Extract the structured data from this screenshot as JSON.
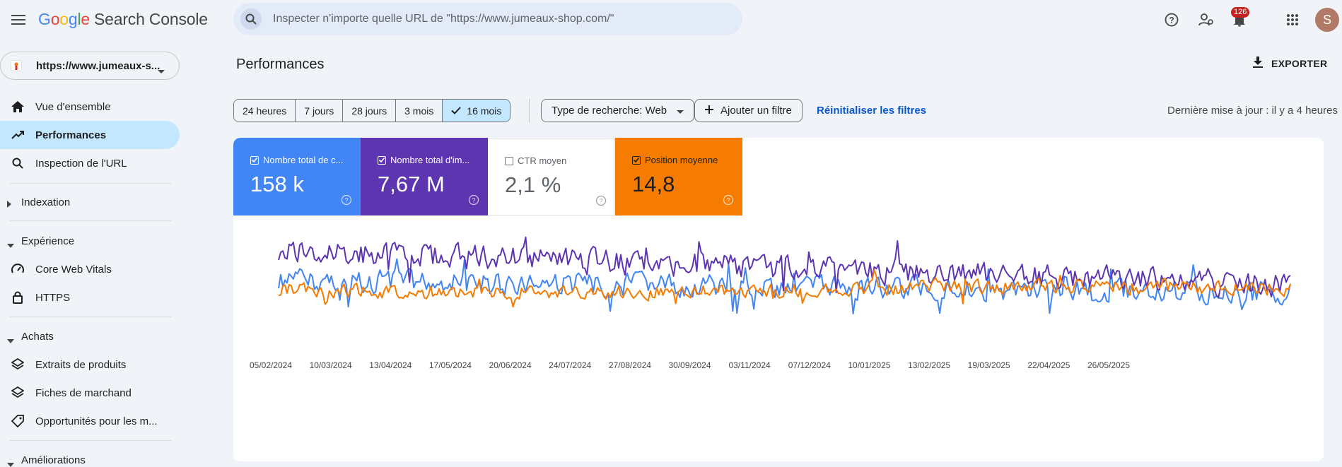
{
  "app": {
    "logo_google": "Google",
    "logo_product": "Search Console"
  },
  "search": {
    "placeholder": "Inspecter n'importe quelle URL de \"https://www.jumeaux-shop.com/\""
  },
  "topbar": {
    "notifications_count": "126",
    "avatar_letter": "S"
  },
  "property": {
    "label": "https://www.jumeaux-s..."
  },
  "sidebar": {
    "items": [
      {
        "label": "Vue d'ensemble",
        "icon": "home-icon"
      },
      {
        "label": "Performances",
        "icon": "trending-up-icon",
        "active": true
      },
      {
        "label": "Inspection de l'URL",
        "icon": "search-icon"
      }
    ],
    "sections": [
      {
        "label": "Indexation",
        "expanded": false,
        "items": []
      },
      {
        "label": "Expérience",
        "expanded": true,
        "items": [
          {
            "label": "Core Web Vitals",
            "icon": "speed-icon"
          },
          {
            "label": "HTTPS",
            "icon": "lock-icon"
          }
        ]
      },
      {
        "label": "Achats",
        "expanded": true,
        "items": [
          {
            "label": "Extraits de produits",
            "icon": "layers-icon"
          },
          {
            "label": "Fiches de marchand",
            "icon": "layers-icon"
          },
          {
            "label": "Opportunités pour les m...",
            "icon": "tag-icon"
          }
        ]
      },
      {
        "label": "Améliorations",
        "expanded": true,
        "items": []
      }
    ]
  },
  "main": {
    "title": "Performances",
    "export_label": "EXPORTER",
    "date_ranges": [
      "24 heures",
      "7 jours",
      "28 jours",
      "3 mois",
      "16 mois"
    ],
    "selected_range": "16 mois",
    "search_type": "Type de recherche: Web",
    "add_filter": "Ajouter un filtre",
    "reset_filters": "Réinitialiser les filtres",
    "last_update": "Dernière mise à jour : il y a 4 heures"
  },
  "metrics": [
    {
      "label": "Nombre total de c...",
      "value": "158 k",
      "checked": true,
      "color": "#4285f4"
    },
    {
      "label": "Nombre total d'im...",
      "value": "7,67 M",
      "checked": true,
      "color": "#5e35b1"
    },
    {
      "label": "CTR moyen",
      "value": "2,1 %",
      "checked": false,
      "color": "#ffffff"
    },
    {
      "label": "Position moyenne",
      "value": "14,8",
      "checked": true,
      "color": "#f57c00"
    }
  ],
  "chart_data": {
    "type": "line",
    "x_tick_labels": [
      "05/02/2024",
      "10/03/2024",
      "13/04/2024",
      "17/05/2024",
      "20/06/2024",
      "24/07/2024",
      "27/08/2024",
      "30/09/2024",
      "03/11/2024",
      "07/12/2024",
      "10/01/2025",
      "13/02/2025",
      "19/03/2025",
      "22/04/2025",
      "26/05/2025"
    ],
    "series": [
      {
        "name": "Nombre total de clics",
        "color": "#4285f4"
      },
      {
        "name": "Nombre total d'impressions",
        "color": "#5e35b1"
      },
      {
        "name": "Position moyenne",
        "color": "#f57c00"
      }
    ],
    "note": "daily series over 16 months; values normalized per series (no visible y-axis)"
  }
}
